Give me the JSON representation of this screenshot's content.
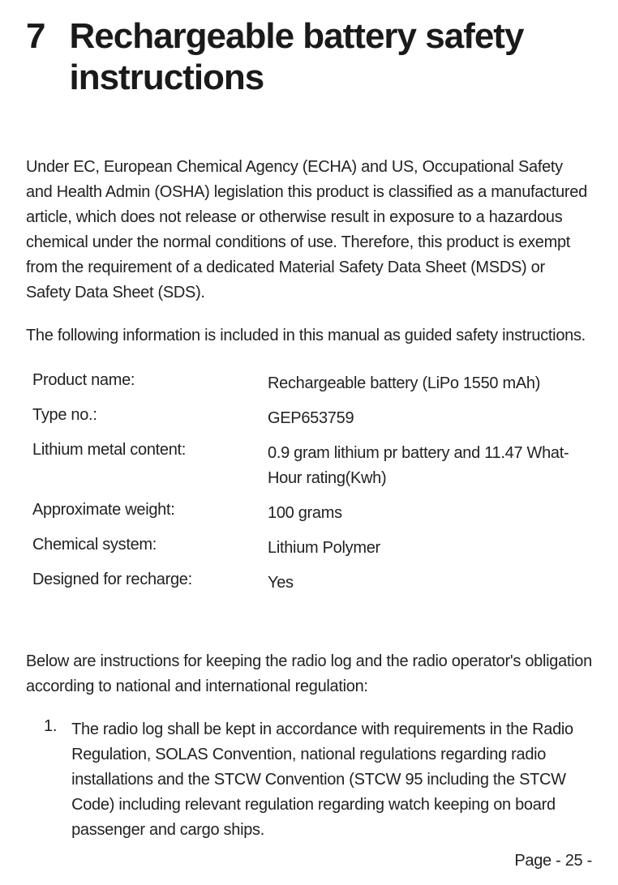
{
  "header": {
    "section_number": "7",
    "section_title": "Rechargeable battery safety instructions"
  },
  "paragraphs": {
    "intro": "Under EC, European Chemical Agency (ECHA) and US, Occupational Safety and Health Admin (OSHA) legislation this product is classified as a manufactured article, which does not release or otherwise result in exposure to a hazardous chemical under the normal conditions of use. Therefore, this product is exempt from the requirement of a dedicated Material Safety Data Sheet (MSDS) or Safety Data Sheet (SDS).",
    "info_note": "The following information is included in this manual as guided safety instructions.",
    "below_note": "Below are instructions for keeping the radio log and the radio operator's obligation according to national and international regulation:"
  },
  "specs": [
    {
      "label": "Product name:",
      "value": "Rechargeable battery (LiPo 1550 mAh)"
    },
    {
      "label": "Type no.:",
      "value": "GEP653759"
    },
    {
      "label": "Lithium metal content:",
      "value": "0.9 gram lithium pr battery and 11.47 What-Hour rating(Kwh)"
    },
    {
      "label": "Approximate weight:",
      "value": "100 grams"
    },
    {
      "label": "Chemical system:",
      "value": "Lithium Polymer"
    },
    {
      "label": "Designed for recharge:",
      "value": "Yes"
    }
  ],
  "list": {
    "item1_number": "1.",
    "item1_text": "The radio log shall be kept in accordance with requirements in the Radio Regulation, SOLAS Convention, national regulations regarding radio installations and the STCW Convention (STCW 95 including the STCW Code) including relevant regulation regarding watch keeping on board passenger and cargo ships."
  },
  "footer": {
    "page_label": "Page - 25 -"
  }
}
